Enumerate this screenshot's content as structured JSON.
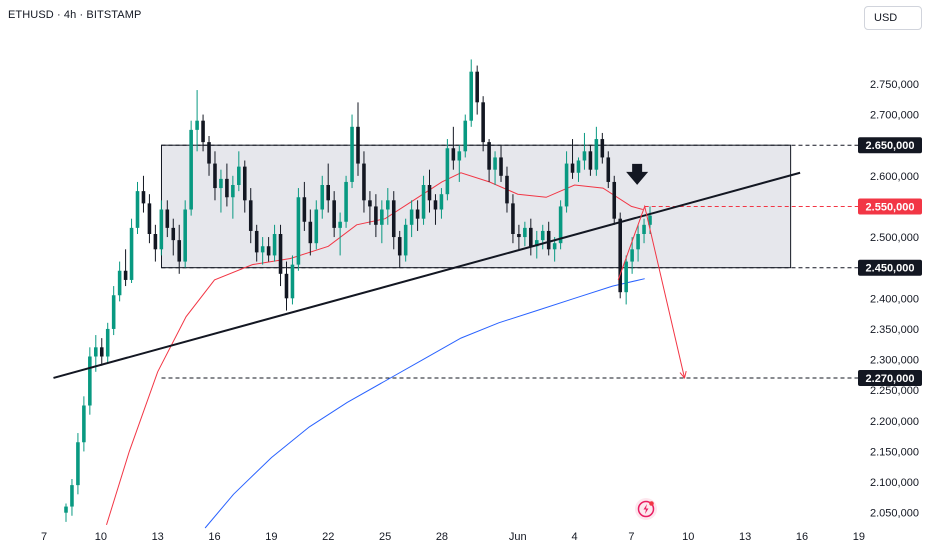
{
  "header": {
    "title": "ETHUSD · 4h · BITSTAMP",
    "currency": "USD"
  },
  "colors": {
    "bull": "#089981",
    "bear": "#131722",
    "ema_fast": "#f23645",
    "ema_slow": "#2962ff",
    "range_box": "#d1d4dc",
    "trendline": "#131722",
    "projection": "#f23645",
    "badge_dark": "#131722",
    "badge_red": "#f23645"
  },
  "chart_data": {
    "type": "line",
    "series_kind": "candlestick",
    "symbol": "ETHUSD",
    "interval": "4h",
    "exchange": "BITSTAMP",
    "ylim": [
      2025000,
      2825000
    ],
    "y_ticks": [
      "2.050,000",
      "2.100,000",
      "2.150,000",
      "2.200,000",
      "2.250,000",
      "2.300,000",
      "2.350,000",
      "2.400,000",
      "2.500,000",
      "2.600,000",
      "2.700,000",
      "2.750,000"
    ],
    "y_tick_values": [
      2050000,
      2100000,
      2150000,
      2200000,
      2250000,
      2300000,
      2350000,
      2400000,
      2500000,
      2600000,
      2700000,
      2750000
    ],
    "x_ticks": [
      "7",
      "10",
      "13",
      "16",
      "19",
      "22",
      "25",
      "28",
      "Jun",
      "4",
      "7",
      "10",
      "13",
      "16",
      "19"
    ],
    "x_tick_days": [
      7,
      10,
      13,
      16,
      19,
      22,
      25,
      28,
      32,
      35,
      38,
      41,
      44,
      47,
      50
    ],
    "x_range_days": [
      7.5,
      50
    ],
    "levels": [
      {
        "label": "2.650,000",
        "value": 2650000,
        "style": "dark",
        "line_start_day": 13.2
      },
      {
        "label": "2.550,000",
        "value": 2550000,
        "style": "red",
        "line_start_day": 38.7
      },
      {
        "label": "2.450,000",
        "value": 2450000,
        "style": "dark",
        "line_start_day": 13.2
      },
      {
        "label": "2.270,000",
        "value": 2270000,
        "style": "dark",
        "line_start_day": 13.2
      }
    ],
    "range_box": {
      "day_start": 13.2,
      "day_end": 46.4,
      "top": 2650000,
      "bottom": 2450000
    },
    "trendline": [
      {
        "day": 7.5,
        "value": 2270000
      },
      {
        "day": 46.9,
        "value": 2605000
      }
    ],
    "projection_path": [
      {
        "day": 37.3,
        "value": 2430000
      },
      {
        "day": 38.7,
        "value": 2550000
      },
      {
        "day": 40.8,
        "value": 2270000
      }
    ],
    "signal_arrow": {
      "day": 38.3,
      "value": 2600000,
      "direction": "down"
    },
    "ema_fast": [
      {
        "day": 10.3,
        "value": 2030000
      },
      {
        "day": 11.5,
        "value": 2150000
      },
      {
        "day": 13.0,
        "value": 2280000
      },
      {
        "day": 14.5,
        "value": 2370000
      },
      {
        "day": 16.0,
        "value": 2430000
      },
      {
        "day": 18.0,
        "value": 2455000
      },
      {
        "day": 20.0,
        "value": 2465000
      },
      {
        "day": 22.0,
        "value": 2485000
      },
      {
        "day": 23.5,
        "value": 2520000
      },
      {
        "day": 25.0,
        "value": 2530000
      },
      {
        "day": 26.5,
        "value": 2560000
      },
      {
        "day": 28.0,
        "value": 2590000
      },
      {
        "day": 29.0,
        "value": 2605000
      },
      {
        "day": 30.5,
        "value": 2590000
      },
      {
        "day": 32.0,
        "value": 2570000
      },
      {
        "day": 33.5,
        "value": 2565000
      },
      {
        "day": 35.0,
        "value": 2585000
      },
      {
        "day": 36.5,
        "value": 2580000
      },
      {
        "day": 38.0,
        "value": 2550000
      },
      {
        "day": 38.6,
        "value": 2545000
      }
    ],
    "ema_slow": [
      {
        "day": 15.5,
        "value": 2025000
      },
      {
        "day": 17.0,
        "value": 2080000
      },
      {
        "day": 19.0,
        "value": 2140000
      },
      {
        "day": 21.0,
        "value": 2190000
      },
      {
        "day": 23.0,
        "value": 2230000
      },
      {
        "day": 25.0,
        "value": 2265000
      },
      {
        "day": 27.0,
        "value": 2300000
      },
      {
        "day": 29.0,
        "value": 2335000
      },
      {
        "day": 31.0,
        "value": 2360000
      },
      {
        "day": 33.0,
        "value": 2380000
      },
      {
        "day": 35.0,
        "value": 2400000
      },
      {
        "day": 37.0,
        "value": 2420000
      },
      {
        "day": 38.7,
        "value": 2432000
      }
    ],
    "candles_ohlc": [
      [
        2050000,
        2065000,
        2035000,
        2060000
      ],
      [
        2060000,
        2105000,
        2045000,
        2095000
      ],
      [
        2095000,
        2180000,
        2080000,
        2165000
      ],
      [
        2165000,
        2240000,
        2150000,
        2225000
      ],
      [
        2225000,
        2320000,
        2210000,
        2305000
      ],
      [
        2305000,
        2340000,
        2280000,
        2320000
      ],
      [
        2320000,
        2335000,
        2290000,
        2305000
      ],
      [
        2305000,
        2360000,
        2295000,
        2350000
      ],
      [
        2350000,
        2420000,
        2340000,
        2405000
      ],
      [
        2405000,
        2460000,
        2395000,
        2445000
      ],
      [
        2445000,
        2480000,
        2420000,
        2430000
      ],
      [
        2430000,
        2530000,
        2425000,
        2515000
      ],
      [
        2515000,
        2590000,
        2505000,
        2575000
      ],
      [
        2575000,
        2600000,
        2540000,
        2555000
      ],
      [
        2555000,
        2570000,
        2490000,
        2505000
      ],
      [
        2505000,
        2520000,
        2460000,
        2480000
      ],
      [
        2480000,
        2560000,
        2470000,
        2545000
      ],
      [
        2545000,
        2560000,
        2500000,
        2515000
      ],
      [
        2515000,
        2530000,
        2470000,
        2495000
      ],
      [
        2495000,
        2520000,
        2440000,
        2460000
      ],
      [
        2460000,
        2560000,
        2450000,
        2545000
      ],
      [
        2545000,
        2690000,
        2535000,
        2675000
      ],
      [
        2675000,
        2740000,
        2640000,
        2690000
      ],
      [
        2690000,
        2700000,
        2640000,
        2655000
      ],
      [
        2655000,
        2665000,
        2600000,
        2620000
      ],
      [
        2620000,
        2640000,
        2560000,
        2580000
      ],
      [
        2580000,
        2610000,
        2540000,
        2595000
      ],
      [
        2595000,
        2620000,
        2550000,
        2565000
      ],
      [
        2565000,
        2600000,
        2530000,
        2585000
      ],
      [
        2585000,
        2640000,
        2575000,
        2615000
      ],
      [
        2615000,
        2625000,
        2540000,
        2560000
      ],
      [
        2560000,
        2580000,
        2490000,
        2510000
      ],
      [
        2510000,
        2520000,
        2460000,
        2475000
      ],
      [
        2475000,
        2500000,
        2455000,
        2485000
      ],
      [
        2485000,
        2500000,
        2460000,
        2470000
      ],
      [
        2470000,
        2520000,
        2460000,
        2505000
      ],
      [
        2505000,
        2520000,
        2420000,
        2440000
      ],
      [
        2440000,
        2460000,
        2380000,
        2400000
      ],
      [
        2400000,
        2470000,
        2390000,
        2455000
      ],
      [
        2455000,
        2580000,
        2445000,
        2565000
      ],
      [
        2565000,
        2590000,
        2510000,
        2525000
      ],
      [
        2525000,
        2545000,
        2470000,
        2490000
      ],
      [
        2490000,
        2560000,
        2480000,
        2545000
      ],
      [
        2545000,
        2600000,
        2530000,
        2585000
      ],
      [
        2585000,
        2620000,
        2540000,
        2560000
      ],
      [
        2560000,
        2575000,
        2500000,
        2515000
      ],
      [
        2515000,
        2540000,
        2470000,
        2525000
      ],
      [
        2525000,
        2600000,
        2515000,
        2590000
      ],
      [
        2590000,
        2700000,
        2580000,
        2680000
      ],
      [
        2680000,
        2720000,
        2600000,
        2620000
      ],
      [
        2620000,
        2640000,
        2540000,
        2560000
      ],
      [
        2560000,
        2575000,
        2520000,
        2550000
      ],
      [
        2550000,
        2570000,
        2500000,
        2520000
      ],
      [
        2520000,
        2560000,
        2490000,
        2545000
      ],
      [
        2545000,
        2580000,
        2520000,
        2560000
      ],
      [
        2560000,
        2575000,
        2480000,
        2500000
      ],
      [
        2500000,
        2510000,
        2450000,
        2470000
      ],
      [
        2470000,
        2530000,
        2460000,
        2520000
      ],
      [
        2520000,
        2560000,
        2500000,
        2545000
      ],
      [
        2545000,
        2560000,
        2510000,
        2530000
      ],
      [
        2530000,
        2600000,
        2520000,
        2585000
      ],
      [
        2585000,
        2610000,
        2540000,
        2560000
      ],
      [
        2560000,
        2570000,
        2520000,
        2545000
      ],
      [
        2545000,
        2580000,
        2530000,
        2570000
      ],
      [
        2570000,
        2660000,
        2560000,
        2645000
      ],
      [
        2645000,
        2680000,
        2610000,
        2625000
      ],
      [
        2625000,
        2650000,
        2590000,
        2640000
      ],
      [
        2640000,
        2700000,
        2630000,
        2690000
      ],
      [
        2690000,
        2790000,
        2680000,
        2770000
      ],
      [
        2770000,
        2780000,
        2700000,
        2720000
      ],
      [
        2720000,
        2730000,
        2640000,
        2655000
      ],
      [
        2655000,
        2660000,
        2590000,
        2610000
      ],
      [
        2610000,
        2640000,
        2585000,
        2630000
      ],
      [
        2630000,
        2650000,
        2590000,
        2600000
      ],
      [
        2600000,
        2615000,
        2540000,
        2555000
      ],
      [
        2555000,
        2570000,
        2490000,
        2505000
      ],
      [
        2505000,
        2520000,
        2480000,
        2500000
      ],
      [
        2500000,
        2525000,
        2485000,
        2515000
      ],
      [
        2515000,
        2530000,
        2470000,
        2485000
      ],
      [
        2485000,
        2510000,
        2465000,
        2495000
      ],
      [
        2495000,
        2520000,
        2480000,
        2510000
      ],
      [
        2510000,
        2525000,
        2470000,
        2480000
      ],
      [
        2480000,
        2500000,
        2460000,
        2490000
      ],
      [
        2490000,
        2560000,
        2480000,
        2550000
      ],
      [
        2550000,
        2640000,
        2540000,
        2620000
      ],
      [
        2620000,
        2660000,
        2595000,
        2605000
      ],
      [
        2605000,
        2630000,
        2590000,
        2625000
      ],
      [
        2625000,
        2670000,
        2610000,
        2640000
      ],
      [
        2640000,
        2650000,
        2600000,
        2610000
      ],
      [
        2610000,
        2680000,
        2600000,
        2660000
      ],
      [
        2660000,
        2670000,
        2620000,
        2630000
      ],
      [
        2630000,
        2640000,
        2580000,
        2590000
      ],
      [
        2590000,
        2600000,
        2520000,
        2530000
      ],
      [
        2530000,
        2540000,
        2400000,
        2410000
      ],
      [
        2410000,
        2470000,
        2390000,
        2460000
      ],
      [
        2460000,
        2500000,
        2440000,
        2480000
      ],
      [
        2480000,
        2520000,
        2460000,
        2505000
      ],
      [
        2505000,
        2530000,
        2490000,
        2520000
      ],
      [
        2520000,
        2550000,
        2505000,
        2535000
      ]
    ]
  }
}
